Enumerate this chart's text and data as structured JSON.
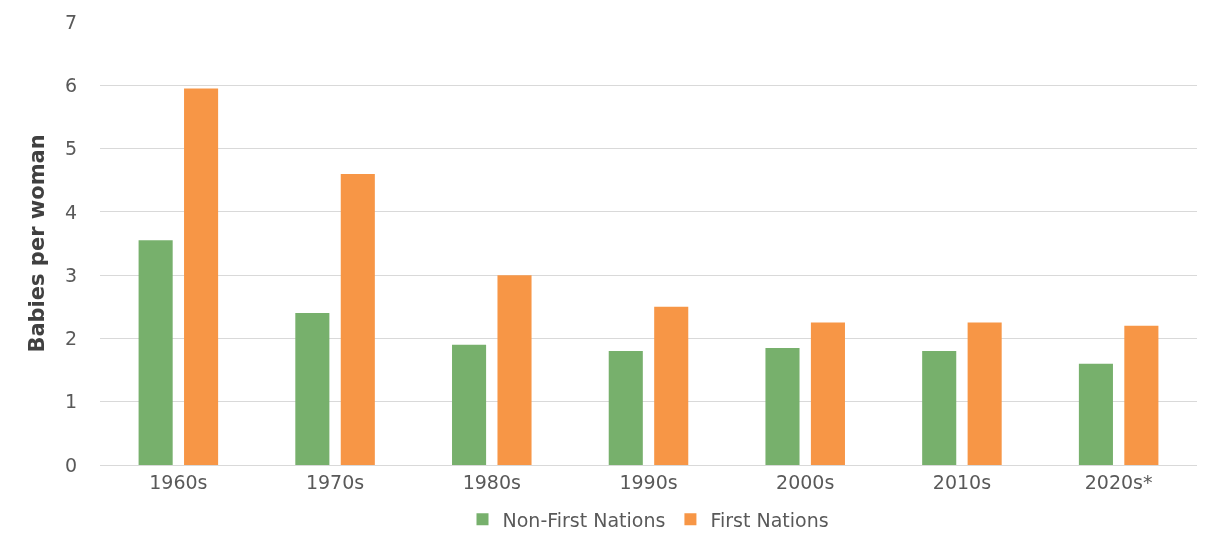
{
  "chart_data": {
    "type": "bar",
    "ylabel": "Babies per woman",
    "categories": [
      "1960s",
      "1970s",
      "1980s",
      "1990s",
      "2000s",
      "2010s",
      "2020s*"
    ],
    "series": [
      {
        "name": "Non-First Nations",
        "color": "#77b06c",
        "values": [
          3.55,
          2.4,
          1.9,
          1.8,
          1.85,
          1.8,
          1.6
        ]
      },
      {
        "name": "First Nations",
        "color": "#f79646",
        "values": [
          5.95,
          4.6,
          3.0,
          2.5,
          2.25,
          2.25,
          2.2
        ]
      }
    ],
    "ylim": [
      0,
      7
    ],
    "yticks": [
      0,
      1,
      2,
      3,
      4,
      5,
      6,
      7
    ],
    "grid": "y",
    "legend": "bottom"
  }
}
